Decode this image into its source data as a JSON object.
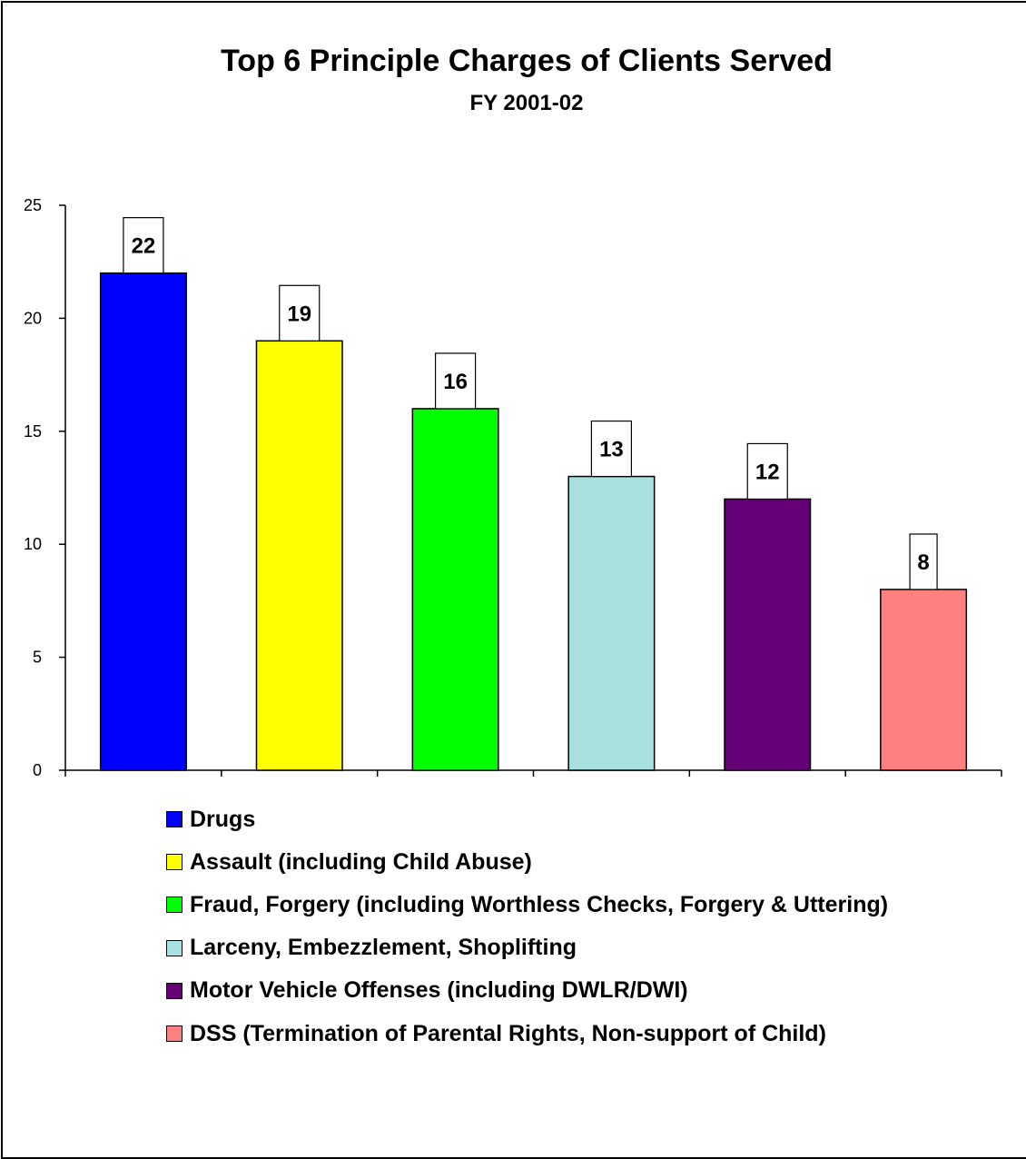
{
  "chart_data": {
    "type": "bar",
    "title": "Top 6 Principle Charges of Clients Served",
    "subtitle": "FY 2001-02",
    "categories": [
      "Drugs",
      "Assault  (including Child Abuse)",
      "Fraud, Forgery (including Worthless Checks, Forgery & Uttering)",
      "Larceny, Embezzlement, Shoplifting",
      "Motor Vehicle Offenses (including DWLR/DWI)",
      "DSS (Termination of Parental Rights, Non-support of Child)"
    ],
    "values": [
      22,
      19,
      16,
      13,
      12,
      8
    ],
    "colors": [
      "#0000ff",
      "#ffff00",
      "#00ff00",
      "#a8e0e0",
      "#660077",
      "#ff8080"
    ],
    "data_labels": [
      "22",
      "19",
      "16",
      "13",
      "12",
      "8"
    ],
    "y_ticks": [
      "0",
      "5",
      "10",
      "15",
      "20",
      "25"
    ],
    "ylim": [
      0,
      25
    ],
    "xlabel": "",
    "ylabel": "",
    "grid": false,
    "legend_position": "bottom"
  }
}
